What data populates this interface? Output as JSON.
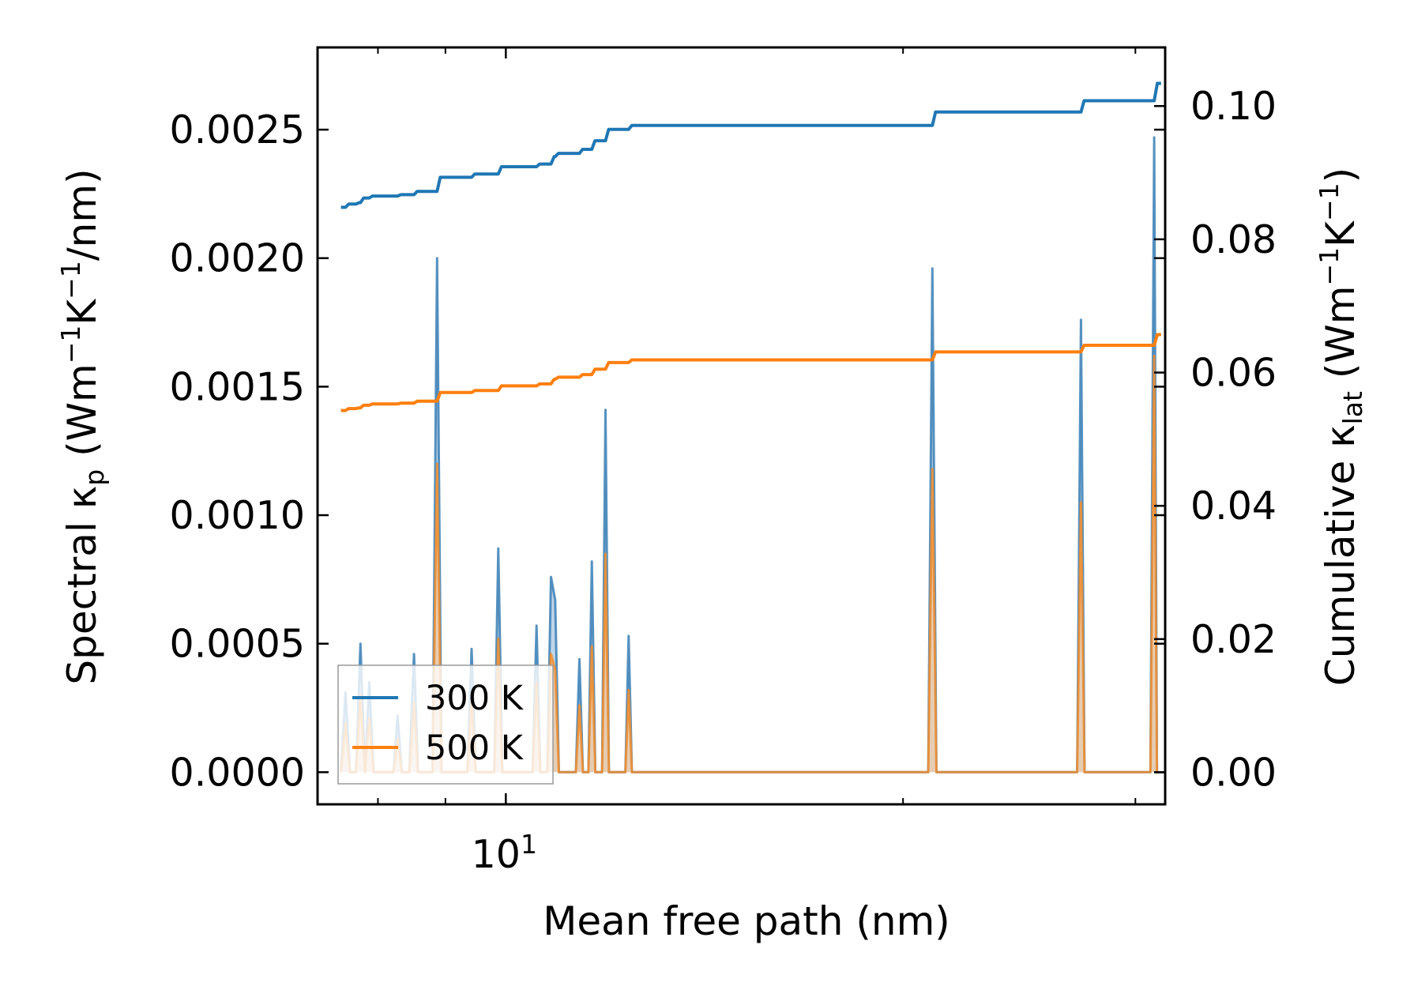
{
  "chart_data": {
    "type": "line",
    "xscale": "log",
    "xlabel": "Mean free path (nm)",
    "xlim": [
      7.2,
      31.6
    ],
    "xticks_major": [
      {
        "value": 10,
        "label_base": "10",
        "label_exp": "1"
      }
    ],
    "xticks_minor": [
      8,
      9,
      20,
      30
    ],
    "left_axis": {
      "label_main": "Spectral κ",
      "label_sub": "p",
      "label_unit_open": " (Wm",
      "label_sup1": "−1",
      "label_mid": "K",
      "label_sup2": "−1",
      "label_unit_close": "/nm)",
      "ylim": [
        -0.000125,
        0.00282
      ],
      "ticks": [
        0.0,
        0.0005,
        0.001,
        0.0015,
        0.002,
        0.0025
      ],
      "tick_labels": [
        "0.0000",
        "0.0005",
        "0.0010",
        "0.0015",
        "0.0020",
        "0.0025"
      ]
    },
    "right_axis": {
      "label_main": "Cumulative κ",
      "label_sub": "lat",
      "label_unit_open": " (Wm",
      "label_sup1": "−1",
      "label_mid": "K",
      "label_sup2": "−1",
      "label_unit_close": ")",
      "ylim": [
        -0.0048,
        0.1088
      ],
      "ticks": [
        0.0,
        0.02,
        0.04,
        0.06,
        0.08,
        0.1
      ],
      "tick_labels": [
        "0.00",
        "0.02",
        "0.04",
        "0.06",
        "0.08",
        "0.10"
      ]
    },
    "legend": {
      "location": "lower-left",
      "entries": [
        "300 K",
        "500 K"
      ]
    },
    "series": [
      {
        "name": "300 K",
        "color": "#1f77b4",
        "spectral_color": "#3a7fb5",
        "fill_color": "#a9c7e1",
        "spectral": [
          [
            7.5,
            0.0
          ],
          [
            7.56,
            0.00031
          ],
          [
            7.62,
            0.0
          ],
          [
            7.7,
            0.0
          ],
          [
            7.76,
            0.0005
          ],
          [
            7.82,
            0.0
          ],
          [
            7.88,
            0.00035
          ],
          [
            7.94,
            0.0
          ],
          [
            8.0,
            0.0
          ],
          [
            8.22,
            0.0
          ],
          [
            8.28,
            0.00022
          ],
          [
            8.34,
            0.0
          ],
          [
            8.45,
            0.0
          ],
          [
            8.52,
            0.00046
          ],
          [
            8.58,
            0.0
          ],
          [
            8.8,
            0.0
          ],
          [
            8.87,
            0.002
          ],
          [
            8.94,
            0.0
          ],
          [
            9.35,
            0.0
          ],
          [
            9.42,
            0.00048
          ],
          [
            9.49,
            0.0
          ],
          [
            9.8,
            0.0
          ],
          [
            9.87,
            0.00087
          ],
          [
            9.94,
            0.0
          ],
          [
            10.48,
            0.0
          ],
          [
            10.55,
            0.00057
          ],
          [
            10.62,
            0.0
          ],
          [
            10.75,
            0.0
          ],
          [
            10.82,
            0.00076
          ],
          [
            10.9,
            0.00067
          ],
          [
            10.97,
            0.0
          ],
          [
            11.3,
            0.0
          ],
          [
            11.37,
            0.00044
          ],
          [
            11.44,
            0.0
          ],
          [
            11.55,
            0.0
          ],
          [
            11.62,
            0.00082
          ],
          [
            11.69,
            0.0
          ],
          [
            11.83,
            0.0
          ],
          [
            11.9,
            0.00141
          ],
          [
            11.97,
            0.0
          ],
          [
            12.32,
            0.0
          ],
          [
            12.39,
            0.00053
          ],
          [
            12.46,
            0.0
          ],
          [
            20.9,
            0.0
          ],
          [
            21.05,
            0.00196
          ],
          [
            21.2,
            0.0
          ],
          [
            27.1,
            0.0
          ],
          [
            27.28,
            0.00176
          ],
          [
            27.45,
            0.0
          ],
          [
            30.8,
            0.0
          ],
          [
            31.0,
            0.00247
          ],
          [
            31.15,
            0.0
          ]
        ],
        "cumulative": [
          [
            7.5,
            0.0848
          ],
          [
            7.56,
            0.0853
          ],
          [
            7.7,
            0.0855
          ],
          [
            7.76,
            0.0862
          ],
          [
            7.88,
            0.0865
          ],
          [
            8.28,
            0.0867
          ],
          [
            8.52,
            0.0872
          ],
          [
            8.87,
            0.0893
          ],
          [
            9.42,
            0.0898
          ],
          [
            9.87,
            0.0909
          ],
          [
            10.55,
            0.0913
          ],
          [
            10.82,
            0.0924
          ],
          [
            10.9,
            0.0929
          ],
          [
            11.37,
            0.0935
          ],
          [
            11.62,
            0.0948
          ],
          [
            11.9,
            0.0965
          ],
          [
            12.39,
            0.0971
          ],
          [
            21.05,
            0.0991
          ],
          [
            27.28,
            0.1008
          ],
          [
            31.0,
            0.1034
          ],
          [
            31.2,
            0.1034
          ]
        ]
      },
      {
        "name": "500 K",
        "color": "#ff7f0e",
        "spectral_color": "#f28c2a",
        "fill_color": "#f2c9a2",
        "spectral": [
          [
            7.5,
            0.0
          ],
          [
            7.56,
            0.00019
          ],
          [
            7.62,
            0.0
          ],
          [
            7.7,
            0.0
          ],
          [
            7.76,
            0.0003
          ],
          [
            7.82,
            0.0
          ],
          [
            7.88,
            0.00021
          ],
          [
            7.94,
            0.0
          ],
          [
            8.0,
            0.0
          ],
          [
            8.22,
            0.0
          ],
          [
            8.28,
            0.00013
          ],
          [
            8.34,
            0.0
          ],
          [
            8.45,
            0.0
          ],
          [
            8.52,
            0.00027
          ],
          [
            8.58,
            0.0
          ],
          [
            8.8,
            0.0
          ],
          [
            8.87,
            0.0012
          ],
          [
            8.94,
            0.0
          ],
          [
            9.35,
            0.0
          ],
          [
            9.42,
            0.00029
          ],
          [
            9.49,
            0.0
          ],
          [
            9.8,
            0.0
          ],
          [
            9.87,
            0.00052
          ],
          [
            9.94,
            0.0
          ],
          [
            10.48,
            0.0
          ],
          [
            10.55,
            0.00035
          ],
          [
            10.62,
            0.0
          ],
          [
            10.75,
            0.0
          ],
          [
            10.82,
            0.00046
          ],
          [
            10.9,
            0.0004
          ],
          [
            10.97,
            0.0
          ],
          [
            11.3,
            0.0
          ],
          [
            11.37,
            0.00026
          ],
          [
            11.44,
            0.0
          ],
          [
            11.55,
            0.0
          ],
          [
            11.62,
            0.00049
          ],
          [
            11.69,
            0.0
          ],
          [
            11.83,
            0.0
          ],
          [
            11.9,
            0.00085
          ],
          [
            11.97,
            0.0
          ],
          [
            12.32,
            0.0
          ],
          [
            12.39,
            0.00032
          ],
          [
            12.46,
            0.0
          ],
          [
            20.9,
            0.0
          ],
          [
            21.05,
            0.00118
          ],
          [
            21.2,
            0.0
          ],
          [
            27.1,
            0.0
          ],
          [
            27.28,
            0.00105
          ],
          [
            27.45,
            0.0
          ],
          [
            30.8,
            0.0
          ],
          [
            31.0,
            0.00162
          ],
          [
            31.15,
            0.0
          ]
        ],
        "cumulative": [
          [
            7.5,
            0.0543
          ],
          [
            7.56,
            0.0546
          ],
          [
            7.7,
            0.0547
          ],
          [
            7.76,
            0.0551
          ],
          [
            7.88,
            0.0553
          ],
          [
            8.28,
            0.0554
          ],
          [
            8.52,
            0.0557
          ],
          [
            8.87,
            0.057
          ],
          [
            9.42,
            0.0573
          ],
          [
            9.87,
            0.058
          ],
          [
            10.55,
            0.0583
          ],
          [
            10.82,
            0.059
          ],
          [
            10.9,
            0.0593
          ],
          [
            11.37,
            0.0597
          ],
          [
            11.62,
            0.0605
          ],
          [
            11.9,
            0.0615
          ],
          [
            12.39,
            0.0619
          ],
          [
            21.05,
            0.0631
          ],
          [
            27.28,
            0.0641
          ],
          [
            31.0,
            0.0657
          ],
          [
            31.2,
            0.0657
          ]
        ]
      }
    ]
  }
}
